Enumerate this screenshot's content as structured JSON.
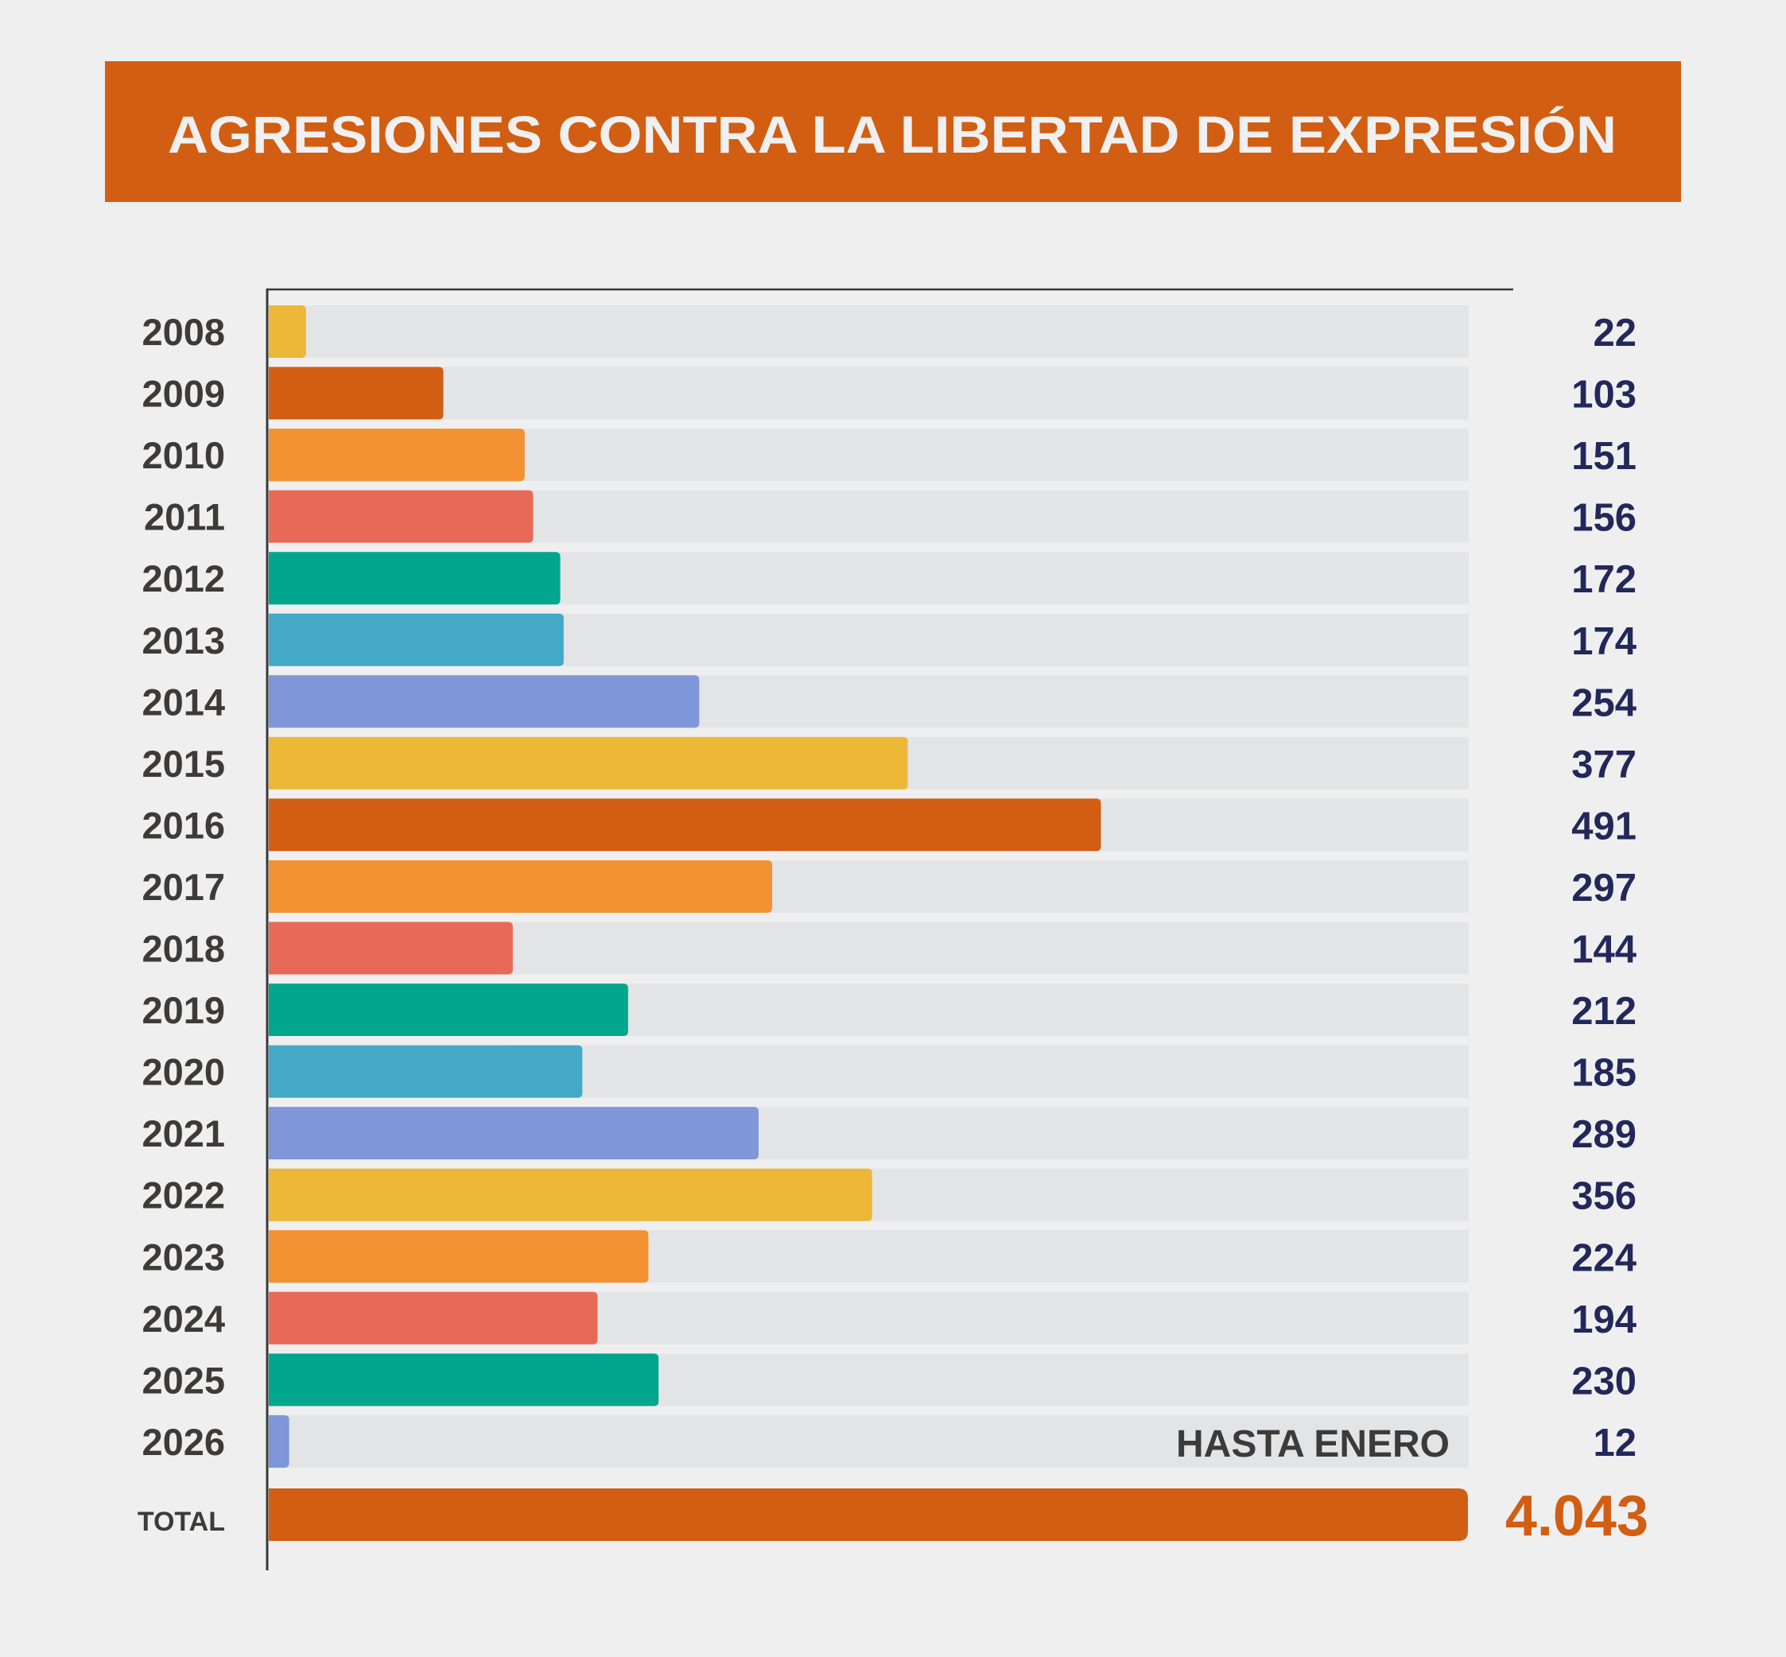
{
  "colors": {
    "background": "#efefef",
    "header": "#d15e12",
    "title_text": "#f0f0f0",
    "track": "#e3e4e6",
    "axis": "#3a3a3a",
    "year_text": "#3d3b3a",
    "value_text": "#22285a",
    "total_bar": "#d15e12",
    "total_value": "#d15e12"
  },
  "chart_data": {
    "type": "bar",
    "orientation": "horizontal",
    "title": "AGRESIONES CONTRA LA LIBERTAD DE EXPRESIÓN",
    "xlabel": "",
    "ylabel": "",
    "xlim": [
      0,
      708
    ],
    "grid": false,
    "legend": "none",
    "categories": [
      "2008",
      "2009",
      "2010",
      "2011",
      "2012",
      "2013",
      "2014",
      "2015",
      "2016",
      "2017",
      "2018",
      "2019",
      "2020",
      "2021",
      "2022",
      "2023",
      "2024",
      "2025",
      "2026"
    ],
    "values": [
      22,
      103,
      151,
      156,
      172,
      174,
      254,
      377,
      491,
      297,
      144,
      212,
      185,
      289,
      356,
      224,
      194,
      230,
      12
    ],
    "value_labels": [
      "22",
      "103",
      "151",
      "156",
      "172",
      "174",
      "254",
      "377",
      "491",
      "297",
      "144",
      "212",
      "185",
      "289",
      "356",
      "224",
      "194",
      "230",
      "12"
    ],
    "bar_colors": [
      "#edb737",
      "#d15e12",
      "#f39232",
      "#e76a59",
      "#00a68e",
      "#44a8c7",
      "#7f96d8",
      "#edb737",
      "#d15e12",
      "#f39232",
      "#e76a59",
      "#00a68e",
      "#44a8c7",
      "#7f96d8",
      "#edb737",
      "#f39232",
      "#e76a59",
      "#00a68e",
      "#7f96d8"
    ],
    "annotations": [
      {
        "category": "2026",
        "text": "HASTA ENERO"
      }
    ],
    "total": {
      "label": "TOTAL",
      "value": 4043,
      "value_label": "4.043"
    }
  }
}
